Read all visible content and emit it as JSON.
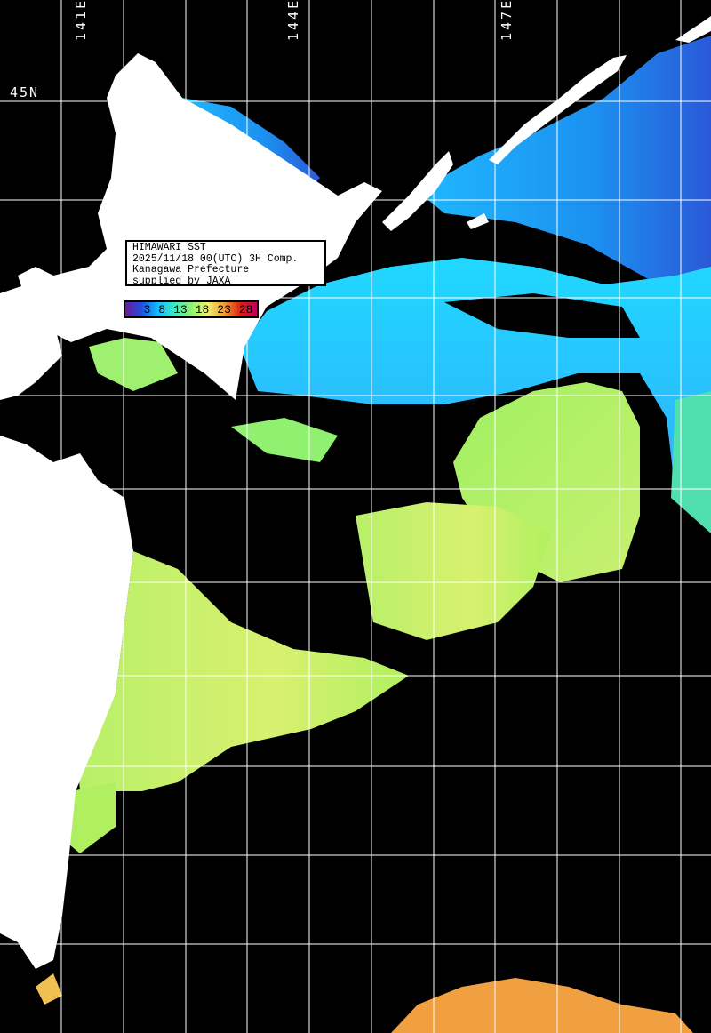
{
  "map": {
    "title": "HIMAWARI SST",
    "datetime": "2025/11/18 00(UTC) 3H Comp.",
    "region": "Kanagawa Prefecture",
    "credit": "supplied by JAXA",
    "longitude_labels": [
      "141E",
      "144E",
      "147E"
    ],
    "latitude_labels": [
      "45N"
    ],
    "colorbar": {
      "ticks": [
        "3",
        "8",
        "13",
        "18",
        "23",
        "28"
      ],
      "colors": [
        "#6a1a9a",
        "#2050e0",
        "#10c0ff",
        "#40e8c0",
        "#90f070",
        "#f0f070",
        "#f0a030",
        "#e02010",
        "#c00060"
      ]
    },
    "colors": {
      "land": "#ffffff",
      "no_data": "#000000",
      "grid": "#ffffff"
    }
  }
}
